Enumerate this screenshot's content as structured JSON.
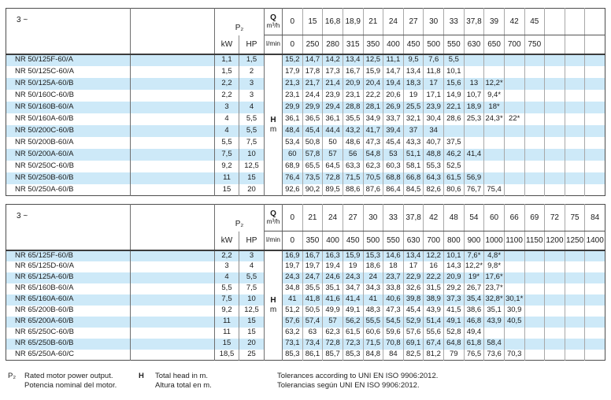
{
  "header": {
    "phase": "3 ~",
    "p2": "P₂",
    "kw": "kW",
    "hp": "HP",
    "q": "Q",
    "m3h": "m³/h",
    "lmin": "l/min",
    "head_letter": "H",
    "head_unit": "m"
  },
  "tables": [
    {
      "flow_m3h": [
        "0",
        "15",
        "16,8",
        "18,9",
        "21",
        "24",
        "27",
        "30",
        "33",
        "37,8",
        "39",
        "42",
        "45",
        "",
        "",
        ""
      ],
      "flow_lmin": [
        "0",
        "250",
        "280",
        "315",
        "350",
        "400",
        "450",
        "500",
        "550",
        "630",
        "650",
        "700",
        "750",
        "",
        "",
        ""
      ],
      "rows": [
        {
          "model": "NR 50/125F-60/A",
          "kw": "1,1",
          "hp": "1,5",
          "values": [
            "15,2",
            "14,7",
            "14,2",
            "13,4",
            "12,5",
            "11,1",
            "9,5",
            "7,6",
            "5,5"
          ]
        },
        {
          "model": "NR 50/125C-60/A",
          "kw": "1,5",
          "hp": "2",
          "values": [
            "17,9",
            "17,8",
            "17,3",
            "16,7",
            "15,9",
            "14,7",
            "13,4",
            "11,8",
            "10,1"
          ]
        },
        {
          "model": "NR 50/125A-60/B",
          "kw": "2,2",
          "hp": "3",
          "values": [
            "21,3",
            "21,7",
            "21,4",
            "20,9",
            "20,4",
            "19,4",
            "18,3",
            "17",
            "15,6",
            "13",
            "12,2*"
          ]
        },
        {
          "model": "NR 50/160C-60/B",
          "kw": "2,2",
          "hp": "3",
          "values": [
            "23,1",
            "24,4",
            "23,9",
            "23,1",
            "22,2",
            "20,6",
            "19",
            "17,1",
            "14,9",
            "10,7",
            "9,4*"
          ]
        },
        {
          "model": "NR 50/160B-60/A",
          "kw": "3",
          "hp": "4",
          "values": [
            "29,9",
            "29,9",
            "29,4",
            "28,8",
            "28,1",
            "26,9",
            "25,5",
            "23,9",
            "22,1",
            "18,9",
            "18*"
          ]
        },
        {
          "model": "NR 50/160A-60/B",
          "kw": "4",
          "hp": "5,5",
          "values": [
            "36,1",
            "36,5",
            "36,1",
            "35,5",
            "34,9",
            "33,7",
            "32,1",
            "30,4",
            "28,6",
            "25,3",
            "24,3*",
            "22*"
          ]
        },
        {
          "model": "NR 50/200C-60/B",
          "kw": "4",
          "hp": "5,5",
          "values": [
            "48,4",
            "45,4",
            "44,4",
            "43,2",
            "41,7",
            "39,4",
            "37",
            "34"
          ]
        },
        {
          "model": "NR 50/200B-60/A",
          "kw": "5,5",
          "hp": "7,5",
          "values": [
            "53,4",
            "50,8",
            "50",
            "48,6",
            "47,3",
            "45,4",
            "43,3",
            "40,7",
            "37,5"
          ]
        },
        {
          "model": "NR 50/200A-60/A",
          "kw": "7,5",
          "hp": "10",
          "values": [
            "60",
            "57,8",
            "57",
            "56",
            "54,8",
            "53",
            "51,1",
            "48,8",
            "46,2",
            "41,4"
          ]
        },
        {
          "model": "NR 50/250C-60/B",
          "kw": "9,2",
          "hp": "12,5",
          "values": [
            "68,9",
            "65,5",
            "64,5",
            "63,3",
            "62,3",
            "60,3",
            "58,1",
            "55,3",
            "52,5"
          ]
        },
        {
          "model": "NR 50/250B-60/B",
          "kw": "11",
          "hp": "15",
          "values": [
            "76,4",
            "73,5",
            "72,8",
            "71,5",
            "70,5",
            "68,8",
            "66,8",
            "64,3",
            "61,5",
            "56,9"
          ]
        },
        {
          "model": "NR 50/250A-60/B",
          "kw": "15",
          "hp": "20",
          "values": [
            "92,6",
            "90,2",
            "89,5",
            "88,6",
            "87,6",
            "86,4",
            "84,5",
            "82,6",
            "80,6",
            "76,7",
            "75,4"
          ]
        }
      ]
    },
    {
      "flow_m3h": [
        "0",
        "21",
        "24",
        "27",
        "30",
        "33",
        "37,8",
        "42",
        "48",
        "54",
        "60",
        "66",
        "69",
        "72",
        "75",
        "84"
      ],
      "flow_lmin": [
        "0",
        "350",
        "400",
        "450",
        "500",
        "550",
        "630",
        "700",
        "800",
        "900",
        "1000",
        "1100",
        "1150",
        "1200",
        "1250",
        "1400"
      ],
      "rows": [
        {
          "model": "NR 65/125F-60/B",
          "kw": "2,2",
          "hp": "3",
          "values": [
            "16,9",
            "16,7",
            "16,3",
            "15,9",
            "15,3",
            "14,6",
            "13,4",
            "12,2",
            "10,1",
            "7,6*",
            "4,8*"
          ]
        },
        {
          "model": "NR 65/125D-60/A",
          "kw": "3",
          "hp": "4",
          "values": [
            "19,7",
            "19,7",
            "19,4",
            "19",
            "18,6",
            "18",
            "17",
            "16",
            "14,3",
            "12,2*",
            "9,8*"
          ]
        },
        {
          "model": "NR 65/125A-60/B",
          "kw": "4",
          "hp": "5,5",
          "values": [
            "24,3",
            "24,7",
            "24,6",
            "24,3",
            "24",
            "23,7",
            "22,9",
            "22,2",
            "20,9",
            "19*",
            "17,6*"
          ]
        },
        {
          "model": "NR 65/160B-60/A",
          "kw": "5,5",
          "hp": "7,5",
          "values": [
            "34,8",
            "35,5",
            "35,1",
            "34,7",
            "34,3",
            "33,8",
            "32,6",
            "31,5",
            "29,2",
            "26,7",
            "23,7*"
          ]
        },
        {
          "model": "NR 65/160A-60/A",
          "kw": "7,5",
          "hp": "10",
          "values": [
            "41",
            "41,8",
            "41,6",
            "41,4",
            "41",
            "40,6",
            "39,8",
            "38,9",
            "37,3",
            "35,4",
            "32,8*",
            "30,1*"
          ]
        },
        {
          "model": "NR 65/200B-60/B",
          "kw": "9,2",
          "hp": "12,5",
          "values": [
            "51,2",
            "50,5",
            "49,9",
            "49,1",
            "48,3",
            "47,3",
            "45,4",
            "43,9",
            "41,5",
            "38,6",
            "35,1",
            "30,9"
          ]
        },
        {
          "model": "NR 65/200A-60/B",
          "kw": "11",
          "hp": "15",
          "values": [
            "57,6",
            "57,4",
            "57",
            "56,2",
            "55,5",
            "54,5",
            "52,9",
            "51,4",
            "49,1",
            "46,8",
            "43,9",
            "40,5"
          ]
        },
        {
          "model": "NR 65/250C-60/B",
          "kw": "11",
          "hp": "15",
          "values": [
            "63,2",
            "63",
            "62,3",
            "61,5",
            "60,6",
            "59,6",
            "57,6",
            "55,6",
            "52,8",
            "49,4"
          ]
        },
        {
          "model": "NR 65/250B-60/B",
          "kw": "15",
          "hp": "20",
          "values": [
            "73,1",
            "73,4",
            "72,8",
            "72,3",
            "71,5",
            "70,8",
            "69,1",
            "67,4",
            "64,8",
            "61,8",
            "58,4"
          ]
        },
        {
          "model": "NR 65/250A-60/C",
          "kw": "18,5",
          "hp": "25",
          "values": [
            "85,3",
            "86,1",
            "85,7",
            "85,3",
            "84,8",
            "84",
            "82,5",
            "81,2",
            "79",
            "76,5",
            "73,6",
            "70,3"
          ]
        }
      ]
    }
  ],
  "footer": {
    "p2_key": "P₂",
    "p2_line1": "Rated motor power output.",
    "p2_line2": "Potencia nominal del motor.",
    "h_key": "H",
    "h_line1": "Total head in m.",
    "h_line2": "Altura total en m.",
    "tol_line1": "Tolerances according to UNI EN ISO 9906:2012.",
    "tol_line2": "Tolerancias según UNI EN ISO 9906:2012."
  }
}
